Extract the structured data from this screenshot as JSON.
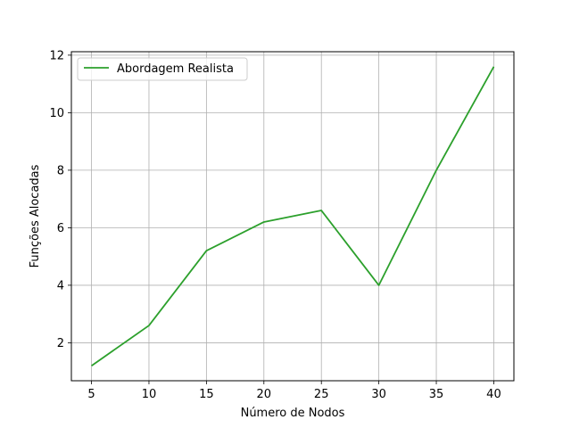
{
  "chart_data": {
    "type": "line",
    "x": [
      5,
      10,
      15,
      20,
      25,
      30,
      35,
      40
    ],
    "series": [
      {
        "name": "Abordagem Realista",
        "values": [
          1.2,
          2.6,
          5.2,
          6.2,
          6.6,
          4.0,
          8.0,
          11.6
        ],
        "color": "#2ca02c"
      }
    ],
    "xlabel": "Número de Nodos",
    "ylabel": "Funções Alocadas",
    "xticks": [
      5,
      10,
      15,
      20,
      25,
      30,
      35,
      40
    ],
    "yticks": [
      2,
      4,
      6,
      8,
      10,
      12
    ],
    "xlim": [
      3.25,
      41.75
    ],
    "ylim": [
      0.68,
      12.12
    ],
    "grid": true,
    "legend_position": "upper-left"
  }
}
